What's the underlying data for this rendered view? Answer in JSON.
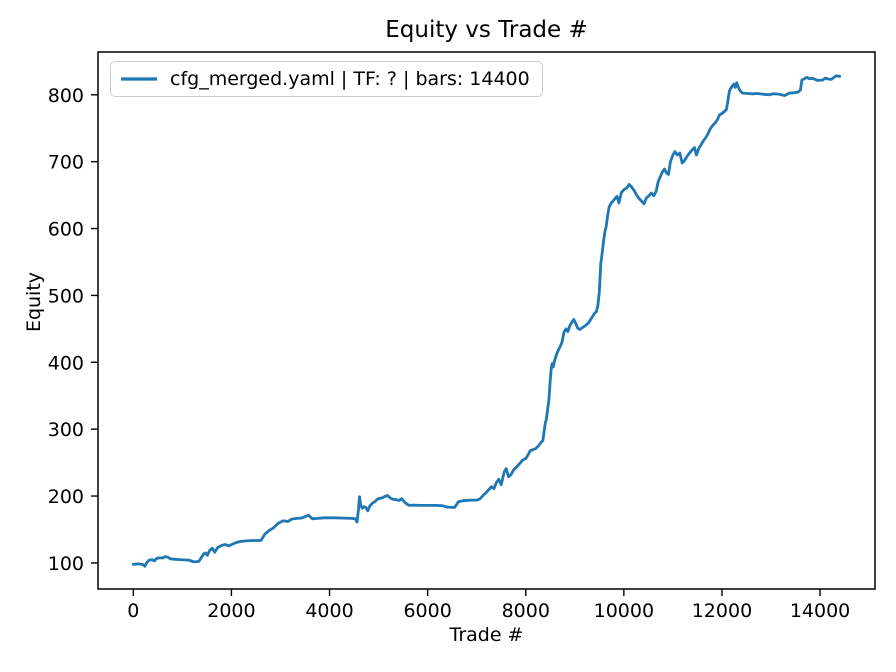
{
  "chart_data": {
    "type": "line",
    "title": "Equity vs Trade #",
    "xlabel": "Trade #",
    "ylabel": "Equity",
    "legend_position": "upper left",
    "grid": false,
    "background_color": "#ffffff",
    "axis_color": "#000000",
    "legend_border_color": "#cccccc",
    "xlim": [
      -720,
      15120
    ],
    "ylim": [
      61,
      864
    ],
    "x_ticks": [
      0,
      2000,
      4000,
      6000,
      8000,
      10000,
      12000,
      14000
    ],
    "y_ticks": [
      100,
      200,
      300,
      400,
      500,
      600,
      700,
      800
    ],
    "series": [
      {
        "name": "cfg_merged.yaml | TF: ? | bars: 14400",
        "color": "#1f77b4",
        "points": [
          [
            0,
            98
          ],
          [
            120,
            98.5
          ],
          [
            200,
            97.5
          ],
          [
            235,
            95
          ],
          [
            270,
            100
          ],
          [
            320,
            104
          ],
          [
            380,
            105
          ],
          [
            430,
            103
          ],
          [
            470,
            106.5
          ],
          [
            520,
            107.5
          ],
          [
            600,
            107.5
          ],
          [
            650,
            109.5
          ],
          [
            700,
            108.5
          ],
          [
            760,
            106
          ],
          [
            830,
            105.5
          ],
          [
            940,
            105
          ],
          [
            1040,
            104.5
          ],
          [
            1140,
            104
          ],
          [
            1210,
            102
          ],
          [
            1270,
            101.5
          ],
          [
            1340,
            102.5
          ],
          [
            1390,
            108.5
          ],
          [
            1430,
            113
          ],
          [
            1470,
            115
          ],
          [
            1510,
            111.5
          ],
          [
            1560,
            119
          ],
          [
            1610,
            122
          ],
          [
            1660,
            116
          ],
          [
            1720,
            123
          ],
          [
            1800,
            126
          ],
          [
            1870,
            127.5
          ],
          [
            1950,
            125.5
          ],
          [
            2030,
            128.5
          ],
          [
            2100,
            130.5
          ],
          [
            2180,
            132
          ],
          [
            2300,
            133
          ],
          [
            2450,
            133.5
          ],
          [
            2600,
            133.5
          ],
          [
            2680,
            143
          ],
          [
            2760,
            148
          ],
          [
            2850,
            152
          ],
          [
            2950,
            159
          ],
          [
            3050,
            163
          ],
          [
            3150,
            162
          ],
          [
            3230,
            165.5
          ],
          [
            3330,
            166.5
          ],
          [
            3420,
            167
          ],
          [
            3500,
            169
          ],
          [
            3570,
            171.5
          ],
          [
            3650,
            166
          ],
          [
            3750,
            166.5
          ],
          [
            3900,
            167.5
          ],
          [
            4100,
            167.5
          ],
          [
            4300,
            167
          ],
          [
            4450,
            166.5
          ],
          [
            4530,
            166
          ],
          [
            4560,
            161
          ],
          [
            4590,
            180
          ],
          [
            4610,
            199
          ],
          [
            4640,
            185
          ],
          [
            4670,
            182
          ],
          [
            4700,
            184
          ],
          [
            4740,
            183
          ],
          [
            4780,
            178
          ],
          [
            4820,
            185
          ],
          [
            4870,
            189
          ],
          [
            4930,
            192
          ],
          [
            4990,
            196
          ],
          [
            5060,
            197
          ],
          [
            5120,
            199
          ],
          [
            5180,
            201
          ],
          [
            5240,
            197
          ],
          [
            5300,
            195
          ],
          [
            5360,
            194.5
          ],
          [
            5420,
            193.5
          ],
          [
            5470,
            196
          ],
          [
            5540,
            190
          ],
          [
            5620,
            186
          ],
          [
            5730,
            186.5
          ],
          [
            5850,
            186
          ],
          [
            5950,
            186
          ],
          [
            6150,
            186
          ],
          [
            6300,
            185.5
          ],
          [
            6400,
            183.5
          ],
          [
            6550,
            183
          ],
          [
            6630,
            191.5
          ],
          [
            6720,
            193
          ],
          [
            6900,
            194
          ],
          [
            7010,
            194
          ],
          [
            7070,
            196
          ],
          [
            7130,
            201
          ],
          [
            7190,
            205
          ],
          [
            7250,
            210
          ],
          [
            7300,
            214
          ],
          [
            7350,
            211
          ],
          [
            7400,
            220
          ],
          [
            7450,
            225
          ],
          [
            7500,
            217
          ],
          [
            7560,
            236
          ],
          [
            7600,
            241
          ],
          [
            7650,
            229
          ],
          [
            7700,
            232
          ],
          [
            7760,
            240
          ],
          [
            7820,
            244
          ],
          [
            7880,
            249
          ],
          [
            7940,
            254
          ],
          [
            8000,
            256
          ],
          [
            8050,
            262
          ],
          [
            8090,
            268
          ],
          [
            8140,
            269
          ],
          [
            8200,
            271
          ],
          [
            8260,
            275
          ],
          [
            8310,
            280
          ],
          [
            8350,
            283
          ],
          [
            8380,
            300
          ],
          [
            8400,
            310
          ],
          [
            8420,
            314
          ],
          [
            8440,
            326
          ],
          [
            8470,
            342
          ],
          [
            8500,
            374
          ],
          [
            8520,
            392
          ],
          [
            8540,
            398
          ],
          [
            8560,
            393
          ],
          [
            8590,
            403
          ],
          [
            8630,
            412
          ],
          [
            8670,
            419
          ],
          [
            8710,
            425
          ],
          [
            8740,
            430
          ],
          [
            8780,
            445
          ],
          [
            8820,
            450
          ],
          [
            8860,
            446
          ],
          [
            8900,
            455
          ],
          [
            8940,
            460
          ],
          [
            8980,
            464
          ],
          [
            9020,
            458
          ],
          [
            9060,
            451
          ],
          [
            9100,
            449
          ],
          [
            9160,
            452
          ],
          [
            9220,
            455
          ],
          [
            9280,
            459
          ],
          [
            9340,
            466
          ],
          [
            9400,
            473
          ],
          [
            9440,
            476
          ],
          [
            9470,
            485
          ],
          [
            9500,
            505
          ],
          [
            9530,
            548
          ],
          [
            9560,
            565
          ],
          [
            9590,
            583
          ],
          [
            9615,
            596
          ],
          [
            9640,
            603
          ],
          [
            9670,
            620
          ],
          [
            9700,
            632
          ],
          [
            9740,
            638
          ],
          [
            9780,
            641
          ],
          [
            9820,
            645
          ],
          [
            9860,
            648
          ],
          [
            9900,
            638
          ],
          [
            9950,
            654
          ],
          [
            10000,
            658
          ],
          [
            10060,
            661
          ],
          [
            10110,
            666
          ],
          [
            10160,
            662
          ],
          [
            10210,
            657
          ],
          [
            10260,
            650
          ],
          [
            10310,
            645
          ],
          [
            10360,
            641
          ],
          [
            10410,
            637
          ],
          [
            10460,
            646
          ],
          [
            10510,
            649
          ],
          [
            10560,
            653
          ],
          [
            10610,
            649
          ],
          [
            10660,
            656
          ],
          [
            10700,
            670
          ],
          [
            10740,
            677
          ],
          [
            10790,
            685
          ],
          [
            10830,
            689
          ],
          [
            10870,
            683
          ],
          [
            10910,
            681
          ],
          [
            10950,
            700
          ],
          [
            11000,
            710
          ],
          [
            11040,
            715
          ],
          [
            11090,
            710
          ],
          [
            11140,
            713
          ],
          [
            11190,
            698
          ],
          [
            11240,
            702
          ],
          [
            11290,
            708
          ],
          [
            11350,
            714
          ],
          [
            11410,
            719
          ],
          [
            11440,
            721
          ],
          [
            11480,
            710
          ],
          [
            11530,
            720
          ],
          [
            11580,
            726
          ],
          [
            11620,
            731
          ],
          [
            11660,
            735
          ],
          [
            11710,
            741
          ],
          [
            11760,
            749
          ],
          [
            11810,
            754
          ],
          [
            11860,
            758
          ],
          [
            11910,
            763
          ],
          [
            11950,
            770
          ],
          [
            12000,
            772
          ],
          [
            12050,
            775
          ],
          [
            12090,
            778
          ],
          [
            12120,
            790
          ],
          [
            12150,
            805
          ],
          [
            12180,
            810
          ],
          [
            12210,
            813
          ],
          [
            12240,
            816
          ],
          [
            12270,
            811
          ],
          [
            12300,
            818
          ],
          [
            12330,
            812
          ],
          [
            12370,
            806
          ],
          [
            12420,
            802.5
          ],
          [
            12520,
            802
          ],
          [
            12620,
            801.5
          ],
          [
            12720,
            802
          ],
          [
            12820,
            801
          ],
          [
            12960,
            800
          ],
          [
            13050,
            801.5
          ],
          [
            13150,
            801
          ],
          [
            13280,
            799
          ],
          [
            13370,
            802.5
          ],
          [
            13470,
            803
          ],
          [
            13550,
            804
          ],
          [
            13600,
            807
          ],
          [
            13630,
            822
          ],
          [
            13680,
            824
          ],
          [
            13730,
            826
          ],
          [
            13780,
            824
          ],
          [
            13850,
            824.5
          ],
          [
            13950,
            821.5
          ],
          [
            14050,
            822
          ],
          [
            14110,
            825
          ],
          [
            14180,
            823.5
          ],
          [
            14230,
            823
          ],
          [
            14290,
            826.5
          ],
          [
            14340,
            828.5
          ],
          [
            14400,
            827.5
          ]
        ]
      }
    ]
  }
}
